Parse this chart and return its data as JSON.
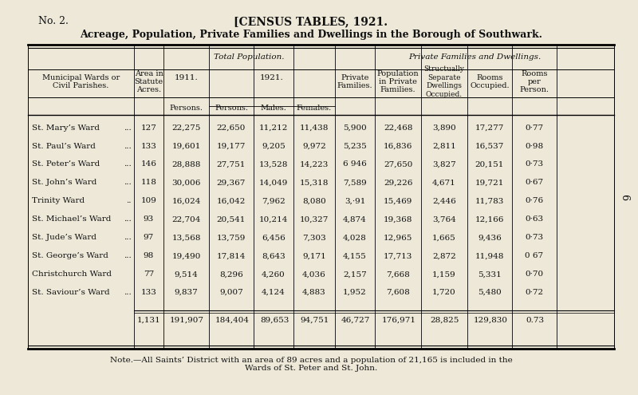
{
  "title_left": "No. 2.",
  "title_center": "[CENSUS TABLES, 1921.",
  "subtitle": "Acreage, Population, Private Families and Dwellings in the Borough of Southwark.",
  "bg_color": "#ede8d8",
  "text_color": "#111111",
  "header_group1": "Total Population.",
  "header_group2": "Private Families and Dwellings.",
  "rows": [
    [
      "St. Mary’s Ward",
      "...",
      "127",
      "22,275",
      "22,650",
      "11,212",
      "11,438",
      "5,900",
      "22,468",
      "3,890",
      "17,277",
      "0·77"
    ],
    [
      "St. Paul’s Ward",
      "...",
      "133",
      "19,601",
      "19,177",
      "9,205",
      "9,972",
      "5,235",
      "16,836",
      "2,811",
      "16,537",
      "0·98"
    ],
    [
      "St. Peter’s Ward",
      "...",
      "146",
      "28,888",
      "27,751",
      "13,528",
      "14,223",
      "6 946",
      "27,650",
      "3,827",
      "20,151",
      "0·73"
    ],
    [
      "St. John’s Ward",
      "...",
      "118",
      "30,006",
      "29,367",
      "14,049",
      "15,318",
      "7,589",
      "29,226",
      "4,671",
      "19,721",
      "0·67"
    ],
    [
      "Trinity Ward",
      "..",
      "109",
      "16,024",
      "16,042",
      "7,962",
      "8,080",
      "3,·91",
      "15,469",
      "2,446",
      "11,783",
      "0·76"
    ],
    [
      "St. Michael’s Ward",
      "...",
      "93",
      "22,704",
      "20,541",
      "10,214",
      "10,327",
      "4,874",
      "19,368",
      "3,764",
      "12,166",
      "0·63"
    ],
    [
      "St. Jude’s Ward",
      "...",
      "97",
      "13,568",
      "13,759",
      "6,456",
      "7,303",
      "4,028",
      "12,965",
      "1,665",
      "9,436",
      "0·73"
    ],
    [
      "St. George’s Ward",
      "...",
      "98",
      "19,490",
      "17,814",
      "8,643",
      "9,171",
      "4,155",
      "17,713",
      "2,872",
      "11,948",
      "0 67"
    ],
    [
      "Christchurch Ward",
      "",
      "77",
      "9,514",
      "8,296",
      "4,260",
      "4,036",
      "2,157",
      "7,668",
      "1,159",
      "5,331",
      "0·70"
    ],
    [
      "St. Saviour’s Ward",
      "...",
      "133",
      "9,837",
      "9,007",
      "4,124",
      "4,883",
      "1,952",
      "7,608",
      "1,720",
      "5,480",
      "0·72"
    ]
  ],
  "totals": [
    "1,131",
    "191,907",
    "184,404",
    "89,653",
    "94,751",
    "46,727",
    "176,971",
    "28,825",
    "129,830",
    "0.73"
  ],
  "note_line1": "Note.—All Saints’ District with an area of 89 acres and a population of 21,165 is included in the",
  "note_line2": "Wards of St. Peter and St. John.",
  "page_number": "9"
}
